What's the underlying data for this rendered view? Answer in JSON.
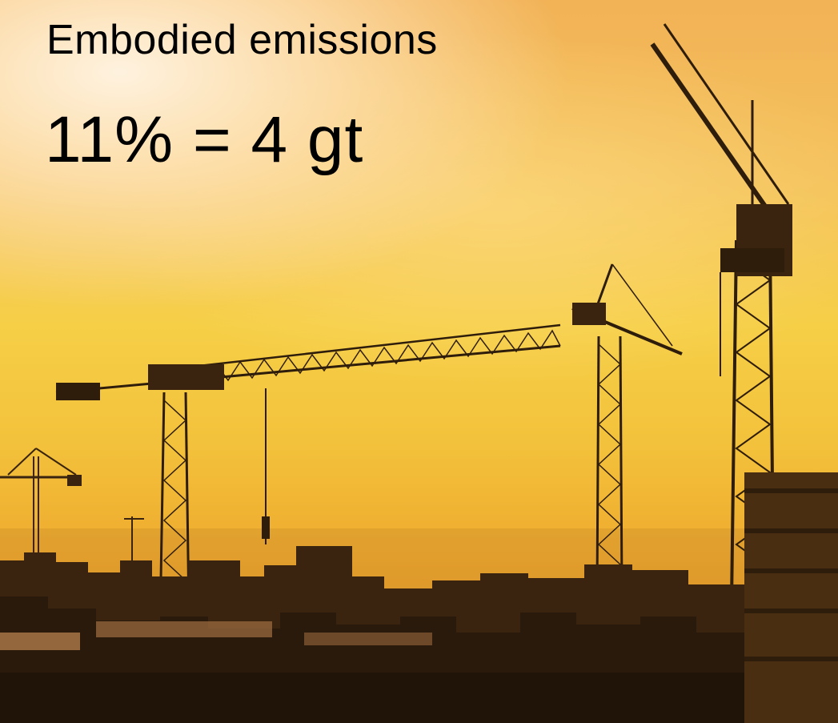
{
  "slide": {
    "title": "Embodied emissions",
    "figure": "11% = 4 gt"
  },
  "image": {
    "subject": "construction-cranes-skyline",
    "colors": {
      "sky_light": "#fff3e2",
      "sky_gold": "#f6cf47",
      "sky_deep": "#d3851f",
      "silhouette": "#2a1a0c"
    }
  }
}
